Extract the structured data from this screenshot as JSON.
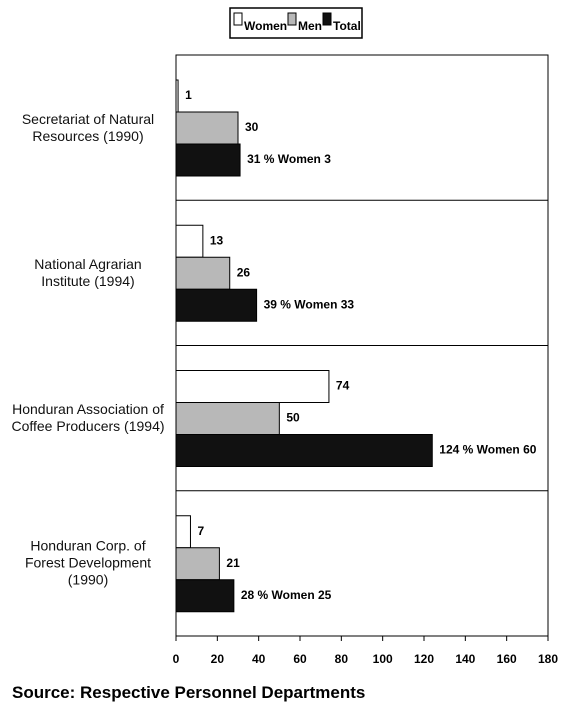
{
  "chart_data": {
    "type": "bar",
    "orientation": "horizontal",
    "categories": [
      "Secretariat of Natural\nResources (1990)",
      "National Agrarian\nInstitute (1994)",
      "Honduran Association of\nCoffee Producers (1994)",
      "Honduran Corp. of\nForest Development\n(1990)"
    ],
    "series": [
      {
        "name": "Women",
        "color": "#ffffff",
        "values": [
          1,
          13,
          74,
          7
        ]
      },
      {
        "name": "Men",
        "color": "#b8b8b8",
        "values": [
          30,
          26,
          50,
          21
        ]
      },
      {
        "name": "Total",
        "color": "#111111",
        "values": [
          31,
          39,
          124,
          28
        ],
        "value_labels": [
          "31 % Women 3",
          "39 % Women 33",
          "124 % Women 60",
          "28 % Women 25"
        ]
      }
    ],
    "xlim": [
      0,
      180
    ],
    "xticks": [
      0,
      20,
      40,
      60,
      80,
      100,
      120,
      140,
      160,
      180
    ],
    "legend": "top",
    "source": "Source: Respective Personnel Departments"
  }
}
